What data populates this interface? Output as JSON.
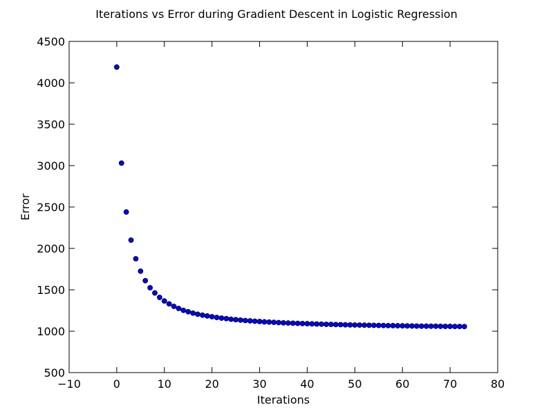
{
  "chart_data": {
    "type": "scatter",
    "title": "Iterations vs Error during Gradient Descent in Logistic Regression",
    "xlabel": "Iterations",
    "ylabel": "Error",
    "xlim": [
      -10,
      80
    ],
    "ylim": [
      500,
      4500
    ],
    "xticks": [
      "−10",
      "0",
      "10",
      "20",
      "30",
      "40",
      "50",
      "60",
      "70",
      "80"
    ],
    "yticks": [
      "500",
      "1000",
      "1500",
      "2000",
      "2500",
      "3000",
      "3500",
      "4000",
      "4500"
    ],
    "grid": false,
    "legend": false,
    "marker_color": "#0000ff",
    "x": [
      0,
      1,
      2,
      3,
      4,
      5,
      6,
      7,
      8,
      9,
      10,
      11,
      12,
      13,
      14,
      15,
      16,
      17,
      18,
      19,
      20,
      21,
      22,
      23,
      24,
      25,
      26,
      27,
      28,
      29,
      30,
      31,
      32,
      33,
      34,
      35,
      36,
      37,
      38,
      39,
      40,
      41,
      42,
      43,
      44,
      45,
      46,
      47,
      48,
      49,
      50,
      51,
      52,
      53,
      54,
      55,
      56,
      57,
      58,
      59,
      60,
      61,
      62,
      63,
      64,
      65,
      66,
      67,
      68,
      69,
      70,
      71,
      72,
      73
    ],
    "y": [
      4190,
      3030,
      2440,
      2100,
      1875,
      1725,
      1610,
      1525,
      1462,
      1408,
      1365,
      1330,
      1300,
      1275,
      1252,
      1235,
      1219,
      1205,
      1194,
      1184,
      1175,
      1166,
      1158,
      1152,
      1145,
      1139,
      1134,
      1129,
      1125,
      1121,
      1117,
      1113,
      1110,
      1107,
      1104,
      1101,
      1099,
      1097,
      1095,
      1093,
      1091,
      1089,
      1087,
      1085,
      1083,
      1082,
      1080,
      1079,
      1077,
      1076,
      1075,
      1074,
      1073,
      1072,
      1071,
      1070,
      1069,
      1068,
      1067,
      1066,
      1065,
      1064,
      1063,
      1062,
      1061,
      1061,
      1060,
      1060,
      1059,
      1058,
      1058,
      1057,
      1057,
      1056
    ]
  }
}
